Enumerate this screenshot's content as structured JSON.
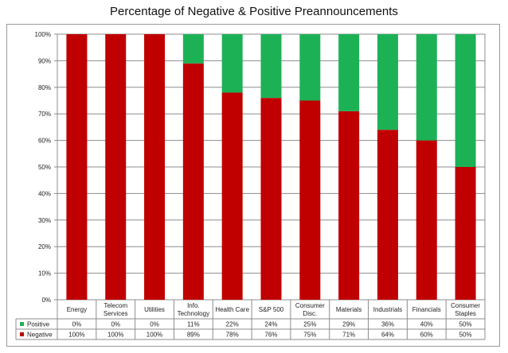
{
  "chart_data": {
    "type": "bar",
    "stacked": true,
    "title": "Percentage of Negative & Positive Preannouncements",
    "categories": [
      [
        "Energy"
      ],
      [
        "Telecom",
        "Services"
      ],
      [
        "Utilities"
      ],
      [
        "Info.",
        "Technology"
      ],
      [
        "Health Care"
      ],
      [
        "S&P 500"
      ],
      [
        "Consumer",
        "Disc."
      ],
      [
        "Materials"
      ],
      [
        "Industrials"
      ],
      [
        "Financials"
      ],
      [
        "Consumer",
        "Staples"
      ]
    ],
    "series": [
      {
        "name": "Positive",
        "color": "#1db156",
        "values": [
          0,
          0,
          0,
          11,
          22,
          24,
          25,
          29,
          36,
          40,
          50
        ],
        "labels": [
          "0%",
          "0%",
          "0%",
          "11%",
          "22%",
          "24%",
          "25%",
          "29%",
          "36%",
          "40%",
          "50%"
        ]
      },
      {
        "name": "Negative",
        "color": "#c00000",
        "values": [
          100,
          100,
          100,
          89,
          78,
          76,
          75,
          71,
          64,
          60,
          50
        ],
        "labels": [
          "100%",
          "100%",
          "100%",
          "89%",
          "78%",
          "76%",
          "75%",
          "71%",
          "64%",
          "60%",
          "50%"
        ]
      }
    ],
    "yticks": [
      "0%",
      "10%",
      "20%",
      "30%",
      "40%",
      "50%",
      "60%",
      "70%",
      "80%",
      "90%",
      "100%"
    ],
    "ylim": [
      0,
      100
    ],
    "grid": true,
    "legend": "data-table-left",
    "data_table": true
  }
}
